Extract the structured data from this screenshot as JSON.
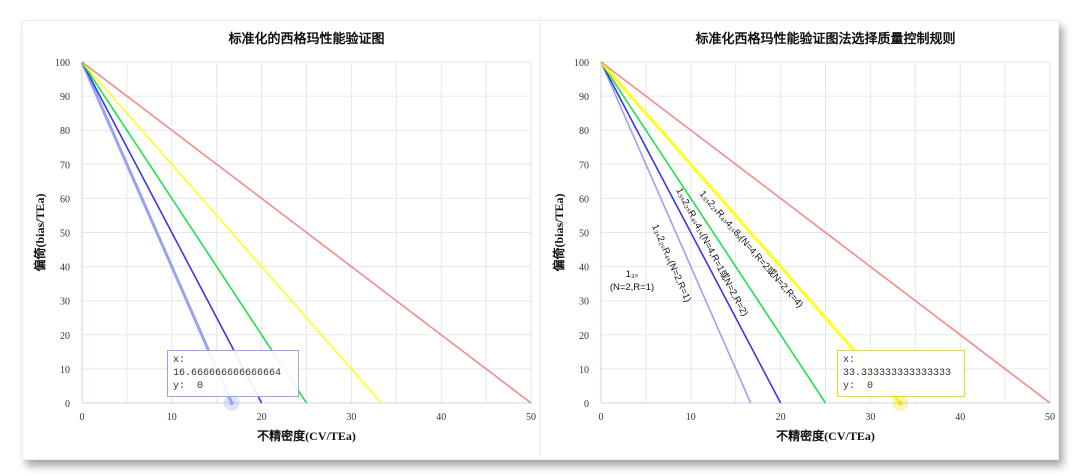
{
  "chart_data": [
    {
      "type": "line",
      "title": "标准化的西格玛性能验证图",
      "xlabel": "不精密度(CV/TEa)",
      "ylabel": "偏倚(bias/TEa)",
      "xlim": [
        0,
        50
      ],
      "ylim": [
        0,
        100
      ],
      "xticks": [
        "0",
        "10",
        "20",
        "30",
        "40",
        "50"
      ],
      "yticks": [
        "0",
        "10",
        "20",
        "30",
        "40",
        "50",
        "60",
        "70",
        "80",
        "90",
        "100"
      ],
      "series": [
        {
          "name": "light-blue",
          "color": "#9ba3f0",
          "x": [
            0,
            16.667
          ],
          "y": [
            100,
            0
          ],
          "width": 3
        },
        {
          "name": "blue",
          "color": "#3a35e8",
          "x": [
            0,
            20
          ],
          "y": [
            100,
            0
          ],
          "width": 1.6
        },
        {
          "name": "green",
          "color": "#22e04a",
          "x": [
            0,
            25
          ],
          "y": [
            100,
            0
          ],
          "width": 1.6
        },
        {
          "name": "yellow",
          "color": "#ffff1a",
          "x": [
            0,
            33.333
          ],
          "y": [
            100,
            0
          ],
          "width": 1.6
        },
        {
          "name": "red",
          "color": "#f58a8a",
          "x": [
            0,
            50
          ],
          "y": [
            100,
            0
          ],
          "width": 1.6
        }
      ],
      "tooltip": {
        "x_label": "x:",
        "x_value": "16.666666666666664",
        "y_label": "y:",
        "y_value": "0",
        "color": "#9ba3f0",
        "point": [
          16.667,
          0
        ]
      }
    },
    {
      "type": "line",
      "title": "标准化西格玛性能验证图法选择质量控制规则",
      "xlabel": "不精密度(CV/TEa)",
      "ylabel": "偏倚(bias/TEa)",
      "xlim": [
        0,
        50
      ],
      "ylim": [
        0,
        100
      ],
      "xticks": [
        "0",
        "10",
        "20",
        "30",
        "40",
        "50"
      ],
      "yticks": [
        "0",
        "10",
        "20",
        "30",
        "40",
        "50",
        "60",
        "70",
        "80",
        "90",
        "100"
      ],
      "series": [
        {
          "name": "light-blue",
          "color": "#9ba3f0",
          "x": [
            0,
            16.667
          ],
          "y": [
            100,
            0
          ],
          "width": 1.6
        },
        {
          "name": "blue",
          "color": "#3a35e8",
          "x": [
            0,
            20
          ],
          "y": [
            100,
            0
          ],
          "width": 1.6
        },
        {
          "name": "green",
          "color": "#22e04a",
          "x": [
            0,
            25
          ],
          "y": [
            100,
            0
          ],
          "width": 1.6
        },
        {
          "name": "yellow",
          "color": "#ffff1a",
          "x": [
            0,
            33.333
          ],
          "y": [
            100,
            0
          ],
          "width": 3
        },
        {
          "name": "red",
          "color": "#f58a8a",
          "x": [
            0,
            50
          ],
          "y": [
            100,
            0
          ],
          "width": 1.6
        }
      ],
      "annotations": [
        {
          "text": "1₃ₛ",
          "sub": "(N=2,R=1)"
        },
        {
          "text": "1₃ₛ2₂ₛR₄ₛ(N=2,R=1)"
        },
        {
          "text": "1₃ₛ2₂ₛR₄ₛ4₁ₛ(N=4,R=1或N=2,R=2)"
        },
        {
          "text": "1₃ₛ2₂ₛR₄ₛ4₁ₛ8ₓ(N=4,R=2或N=2,R=4)"
        }
      ],
      "tooltip": {
        "x_label": "x:",
        "x_value": "33.333333333333333",
        "y_label": "y:",
        "y_value": "0",
        "color": "#e8e000",
        "point": [
          33.333,
          0
        ]
      }
    }
  ]
}
